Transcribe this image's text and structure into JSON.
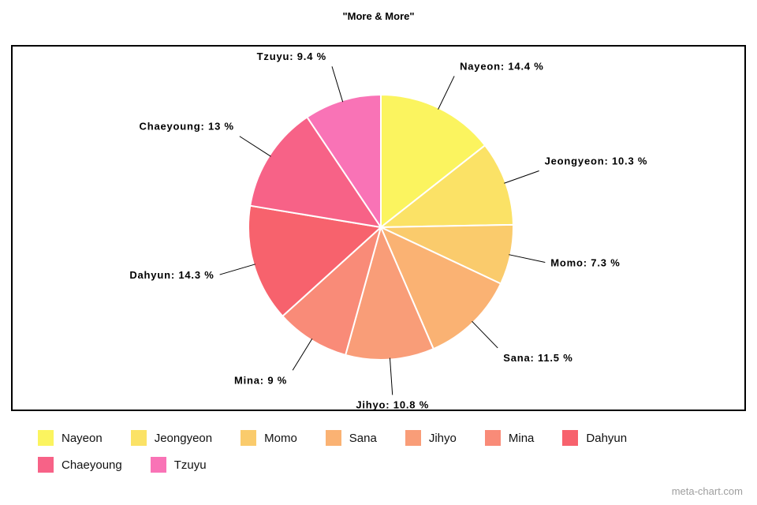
{
  "title": "\"More & More\"",
  "watermark": "meta-chart.com",
  "chart_data": {
    "type": "pie",
    "title": "\"More & More\"",
    "categories": [
      "Nayeon",
      "Jeongyeon",
      "Momo",
      "Sana",
      "Jihyo",
      "Mina",
      "Dahyun",
      "Chaeyoung",
      "Tzuyu"
    ],
    "values": [
      14.4,
      10.3,
      7.3,
      11.5,
      10.8,
      9,
      14.3,
      13,
      9.4
    ],
    "slice_labels": [
      "Nayeon: 14.4 %",
      "Jeongyeon: 10.3 %",
      "Momo: 7.3 %",
      "Sana: 11.5 %",
      "Jihyo: 10.8 %",
      "Mina: 9 %",
      "Dahyun: 14.3 %",
      "Chaeyoung: 13 %",
      "Tzuyu: 9.4 %"
    ],
    "colors": [
      "#FBF45F",
      "#FBE266",
      "#FACB6C",
      "#FAB273",
      "#F99D78",
      "#F98B78",
      "#F7626D",
      "#F76287",
      "#F973B6"
    ],
    "slice_border_color": "#ffffff",
    "label_line_color": "#000000",
    "start_angle": 0,
    "clockwise": true,
    "legend_position": "bottom"
  }
}
